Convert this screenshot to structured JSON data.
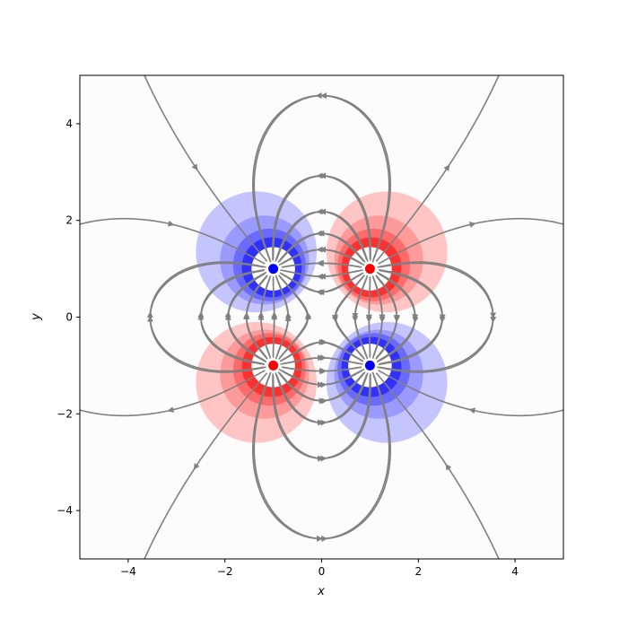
{
  "chart_data": {
    "type": "streamplot",
    "title": "",
    "xlabel": "x",
    "ylabel": "y",
    "xlim": [
      -5,
      5
    ],
    "ylim": [
      -5,
      5
    ],
    "x_ticks": [
      -4,
      -2,
      0,
      2,
      4
    ],
    "y_ticks": [
      -4,
      -2,
      0,
      2,
      4
    ],
    "x_tick_labels": [
      "−4",
      "−2",
      "0",
      "2",
      "4"
    ],
    "y_tick_labels": [
      "−4",
      "−2",
      "0",
      "2",
      "4"
    ],
    "grid": false,
    "legend": false,
    "charges": [
      {
        "x": -1,
        "y": 1,
        "sign": "negative"
      },
      {
        "x": 1,
        "y": 1,
        "sign": "positive"
      },
      {
        "x": -1,
        "y": -1,
        "sign": "positive"
      },
      {
        "x": 1,
        "y": -1,
        "sign": "negative"
      }
    ],
    "colors": {
      "positive": "#ff0000",
      "negative": "#0000ff",
      "streamlines": "#808080",
      "background": "#fcfcfc"
    }
  }
}
